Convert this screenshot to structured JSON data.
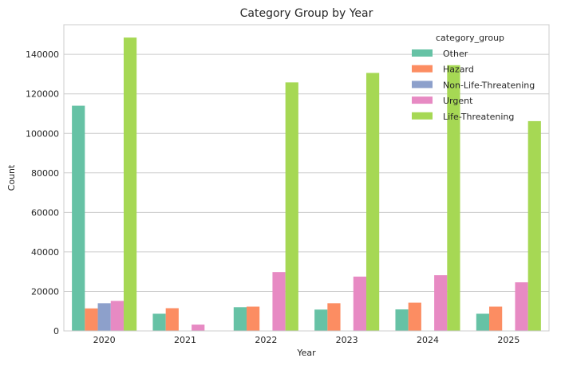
{
  "chart_data": {
    "type": "bar",
    "title": "Category Group by Year",
    "xlabel": "Year",
    "ylabel": "Count",
    "ylim": [
      0,
      155000
    ],
    "yticks": [
      0,
      20000,
      40000,
      60000,
      80000,
      100000,
      120000,
      140000
    ],
    "grid": true,
    "legend": {
      "title": "category_group",
      "placement": "top-right"
    },
    "categories": [
      "2020",
      "2021",
      "2022",
      "2023",
      "2024",
      "2025"
    ],
    "series": [
      {
        "name": "Other",
        "color": "#66c2a5",
        "values": [
          114000,
          8700,
          12000,
          10800,
          10900,
          8700
        ]
      },
      {
        "name": "Hazard",
        "color": "#fc8d62",
        "values": [
          11400,
          11500,
          12300,
          14000,
          14300,
          12300
        ]
      },
      {
        "name": "Non-Life-Threatening",
        "color": "#8da0cb",
        "values": [
          14000,
          0,
          0,
          0,
          0,
          0
        ]
      },
      {
        "name": "Urgent",
        "color": "#e78ac3",
        "values": [
          15200,
          3200,
          29800,
          27500,
          28200,
          24600
        ]
      },
      {
        "name": "Life-Threatening",
        "color": "#a6d854",
        "values": [
          148500,
          0,
          125800,
          130600,
          134500,
          106200
        ]
      }
    ]
  }
}
